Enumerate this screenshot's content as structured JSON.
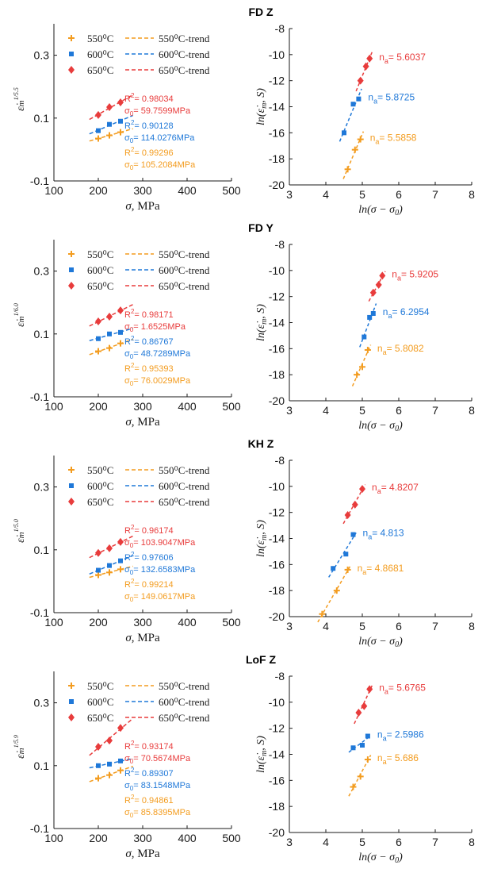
{
  "colors": {
    "550": "#f39c1f",
    "600": "#1f78d8",
    "650": "#e83c3c",
    "axis": "#1a1a1a"
  },
  "chart_data": [
    {
      "title": "FD Z",
      "left": {
        "type": "scatter",
        "ylabel_text": "ε̇m^(1/5.5)",
        "ylabel_exp": "1/5.5",
        "xlabel": "σ, MPa",
        "xlim": [
          100,
          500
        ],
        "ylim": [
          -0.1,
          0.4
        ],
        "xticks": [
          "100",
          "200",
          "300",
          "400",
          "500"
        ],
        "yticks": [
          "-0.1",
          "0.1",
          "0.3"
        ],
        "legend": [
          "550⁰C",
          "600⁰C",
          "650⁰C"
        ],
        "legend_trend": [
          "550⁰C-trend",
          "600⁰C-trend",
          "650⁰C-trend"
        ],
        "series": [
          {
            "name": "550⁰C",
            "x": [
              200,
              225,
              250
            ],
            "y": [
              0.035,
              0.045,
              0.055
            ],
            "r2": "0.99296",
            "sigma0": "105.2084MPa"
          },
          {
            "name": "600⁰C",
            "x": [
              200,
              225,
              250
            ],
            "y": [
              0.06,
              0.08,
              0.09
            ],
            "r2": "0.90128",
            "sigma0": "114.0276MPa"
          },
          {
            "name": "650⁰C",
            "x": [
              200,
              225,
              250
            ],
            "y": [
              0.11,
              0.135,
              0.15
            ],
            "r2": "0.98034",
            "sigma0": "59.7599MPa"
          }
        ]
      },
      "right": {
        "type": "scatter",
        "ylabel": "ln(ε̇m, S)",
        "xlabel": "ln(σ − σ0)",
        "xlim": [
          3,
          8
        ],
        "ylim": [
          -20,
          -8
        ],
        "xticks": [
          "3",
          "4",
          "5",
          "6",
          "7",
          "8"
        ],
        "yticks": [
          "-20",
          "-18",
          "-16",
          "-14",
          "-12",
          "-10",
          "-8"
        ],
        "series": [
          {
            "name": "550⁰C",
            "x": [
              4.6,
              4.8,
              4.95
            ],
            "y": [
              -18.8,
              -17.3,
              -16.5
            ],
            "na": "5.5858"
          },
          {
            "name": "600⁰C",
            "x": [
              4.5,
              4.75,
              4.9
            ],
            "y": [
              -16.0,
              -13.8,
              -13.4
            ],
            "na": "5.8725"
          },
          {
            "name": "650⁰C",
            "x": [
              4.95,
              5.1,
              5.2
            ],
            "y": [
              -12.0,
              -10.9,
              -10.3
            ],
            "na": "5.6037"
          }
        ]
      }
    },
    {
      "title": "FD Y",
      "left": {
        "type": "scatter",
        "ylabel_text": "ε̇m^(1/6.0)",
        "ylabel_exp": "1/6.0",
        "xlabel": "σ, MPa",
        "xlim": [
          100,
          500
        ],
        "ylim": [
          -0.1,
          0.4
        ],
        "xticks": [
          "100",
          "200",
          "300",
          "400",
          "500"
        ],
        "yticks": [
          "-0.1",
          "0.1",
          "0.3"
        ],
        "legend": [
          "550⁰C",
          "600⁰C",
          "650⁰C"
        ],
        "legend_trend": [
          "550⁰C-trend",
          "600⁰C-trend",
          "650⁰C-trend"
        ],
        "series": [
          {
            "name": "550⁰C",
            "x": [
              200,
              225,
              250
            ],
            "y": [
              0.045,
              0.055,
              0.07
            ],
            "r2": "0.95393",
            "sigma0": "76.0029MPa"
          },
          {
            "name": "600⁰C",
            "x": [
              200,
              225,
              250
            ],
            "y": [
              0.085,
              0.1,
              0.105
            ],
            "r2": "0.86767",
            "sigma0": "48.7289MPa"
          },
          {
            "name": "650⁰C",
            "x": [
              200,
              225,
              250
            ],
            "y": [
              0.14,
              0.155,
              0.175
            ],
            "r2": "0.98171",
            "sigma0": "1.6525MPa"
          }
        ]
      },
      "right": {
        "type": "scatter",
        "ylabel": "ln(ε̇m, S)",
        "xlabel": "ln(σ − σ0)",
        "xlim": [
          3,
          8
        ],
        "ylim": [
          -20,
          -8
        ],
        "xticks": [
          "3",
          "4",
          "5",
          "6",
          "7",
          "8"
        ],
        "yticks": [
          "-20",
          "-18",
          "-16",
          "-14",
          "-12",
          "-10",
          "-8"
        ],
        "series": [
          {
            "name": "550⁰C",
            "x": [
              4.85,
              5.0,
              5.15
            ],
            "y": [
              -18.0,
              -17.4,
              -16.1
            ],
            "na": "5.8082"
          },
          {
            "name": "600⁰C",
            "x": [
              5.05,
              5.2,
              5.3
            ],
            "y": [
              -15.1,
              -13.6,
              -13.3
            ],
            "na": "6.2954"
          },
          {
            "name": "650⁰C",
            "x": [
              5.3,
              5.45,
              5.55
            ],
            "y": [
              -11.7,
              -11.1,
              -10.4
            ],
            "na": "5.9205"
          }
        ]
      }
    },
    {
      "title": "KH Z",
      "left": {
        "type": "scatter",
        "ylabel_text": "ε̇m^(1/5.0)",
        "ylabel_exp": "1/5.0",
        "xlabel": "σ, MPa",
        "xlim": [
          100,
          500
        ],
        "ylim": [
          -0.1,
          0.4
        ],
        "xticks": [
          "100",
          "200",
          "300",
          "400",
          "500"
        ],
        "yticks": [
          "-0.1",
          "0.1",
          "0.3"
        ],
        "legend": [
          "550⁰C",
          "600⁰C",
          "650⁰C"
        ],
        "legend_trend": [
          "550⁰C-trend",
          "600⁰C-trend",
          "650⁰C-trend"
        ],
        "series": [
          {
            "name": "550⁰C",
            "x": [
              200,
              225,
              250
            ],
            "y": [
              0.02,
              0.028,
              0.038
            ],
            "r2": "0.99214",
            "sigma0": "149.0617MPa"
          },
          {
            "name": "600⁰C",
            "x": [
              200,
              225,
              250
            ],
            "y": [
              0.035,
              0.05,
              0.065
            ],
            "r2": "0.97606",
            "sigma0": "132.6583MPa"
          },
          {
            "name": "650⁰C",
            "x": [
              200,
              225,
              250
            ],
            "y": [
              0.09,
              0.105,
              0.125
            ],
            "r2": "0.96174",
            "sigma0": "103.9047MPa"
          }
        ]
      },
      "right": {
        "type": "scatter",
        "ylabel": "ln(ε̇m, S)",
        "xlabel": "ln(σ − σ0)",
        "xlim": [
          3,
          8
        ],
        "ylim": [
          -20,
          -8
        ],
        "xticks": [
          "3",
          "4",
          "5",
          "6",
          "7",
          "8"
        ],
        "yticks": [
          "-20",
          "-18",
          "-16",
          "-14",
          "-12",
          "-10",
          "-8"
        ],
        "series": [
          {
            "name": "550⁰C",
            "x": [
              3.9,
              4.3,
              4.6
            ],
            "y": [
              -19.8,
              -18.0,
              -16.4
            ],
            "na": "4.8681"
          },
          {
            "name": "600⁰C",
            "x": [
              4.2,
              4.55,
              4.75
            ],
            "y": [
              -16.3,
              -15.2,
              -13.7
            ],
            "na": "4.813"
          },
          {
            "name": "650⁰C",
            "x": [
              4.6,
              4.8,
              5.0
            ],
            "y": [
              -12.2,
              -11.4,
              -10.2
            ],
            "na": "4.8207"
          }
        ]
      }
    },
    {
      "title": "LoF Z",
      "left": {
        "type": "scatter",
        "ylabel_text": "ε̇m^(1/5.9)",
        "ylabel_exp": "1/5.9",
        "xlabel": "σ, MPa",
        "xlim": [
          100,
          500
        ],
        "ylim": [
          -0.1,
          0.4
        ],
        "xticks": [
          "100",
          "200",
          "300",
          "400",
          "500"
        ],
        "yticks": [
          "-0.1",
          "0.1",
          "0.3"
        ],
        "legend": [
          "550⁰C",
          "600⁰C",
          "650⁰C"
        ],
        "legend_trend": [
          "550⁰C-trend",
          "600⁰C-trend",
          "650⁰C-trend"
        ],
        "series": [
          {
            "name": "550⁰C",
            "x": [
              200,
              225,
              250
            ],
            "y": [
              0.06,
              0.07,
              0.085
            ],
            "r2": "0.94861",
            "sigma0": "85.8395MPa"
          },
          {
            "name": "600⁰C",
            "x": [
              200,
              225,
              250
            ],
            "y": [
              0.1,
              0.105,
              0.115
            ],
            "r2": "0.89307",
            "sigma0": "83.1548MPa"
          },
          {
            "name": "650⁰C",
            "x": [
              200,
              225,
              250
            ],
            "y": [
              0.16,
              0.18,
              0.22
            ],
            "r2": "0.93174",
            "sigma0": "70.5674MPa"
          }
        ]
      },
      "right": {
        "type": "scatter",
        "ylabel": "ln(ε̇m, S)",
        "xlabel": "ln(σ − σ0)",
        "xlim": [
          3,
          8
        ],
        "ylim": [
          -20,
          -8
        ],
        "xticks": [
          "3",
          "4",
          "5",
          "6",
          "7",
          "8"
        ],
        "yticks": [
          "-20",
          "-18",
          "-16",
          "-14",
          "-12",
          "-10",
          "-8"
        ],
        "series": [
          {
            "name": "550⁰C",
            "x": [
              4.75,
              4.95,
              5.15
            ],
            "y": [
              -16.5,
              -15.7,
              -14.4
            ],
            "na": "5.686"
          },
          {
            "name": "600⁰C",
            "x": [
              4.75,
              5.0,
              5.15
            ],
            "y": [
              -13.5,
              -13.3,
              -12.6
            ],
            "na": "2.5986"
          },
          {
            "name": "650⁰C",
            "x": [
              4.9,
              5.05,
              5.2
            ],
            "y": [
              -10.8,
              -10.3,
              -9.0
            ],
            "na": "5.6765"
          }
        ]
      }
    }
  ]
}
